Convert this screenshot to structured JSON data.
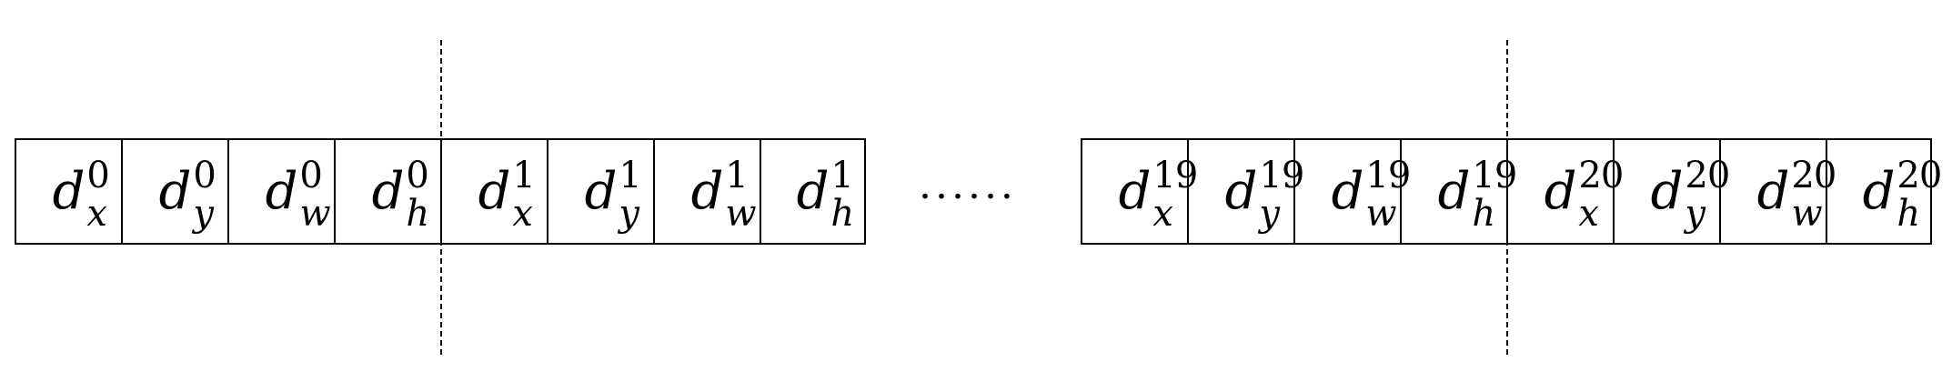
{
  "base_symbol": "d",
  "ellipsis": "......",
  "left_group": [
    {
      "sub": "x",
      "sup": "0"
    },
    {
      "sub": "y",
      "sup": "0"
    },
    {
      "sub": "w",
      "sup": "0"
    },
    {
      "sub": "h",
      "sup": "0"
    },
    {
      "sub": "x",
      "sup": "1"
    },
    {
      "sub": "y",
      "sup": "1"
    },
    {
      "sub": "w",
      "sup": "1"
    },
    {
      "sub": "h",
      "sup": "1"
    }
  ],
  "right_group": [
    {
      "sub": "x",
      "sup": "19"
    },
    {
      "sub": "y",
      "sup": "19"
    },
    {
      "sub": "w",
      "sup": "19"
    },
    {
      "sub": "h",
      "sup": "19"
    },
    {
      "sub": "x",
      "sup": "20"
    },
    {
      "sub": "y",
      "sup": "20"
    },
    {
      "sub": "w",
      "sup": "20"
    },
    {
      "sub": "h",
      "sup": "20"
    }
  ]
}
